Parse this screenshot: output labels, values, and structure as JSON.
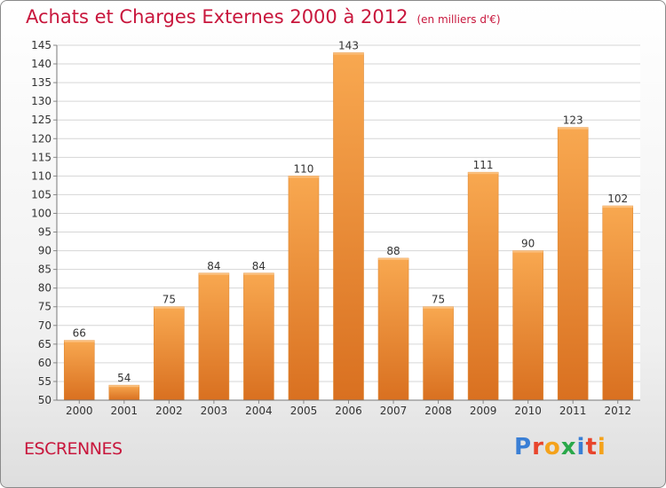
{
  "header": {
    "title": "Achats et Charges Externes 2000 à 2012",
    "unit": "(en milliers d'€)"
  },
  "commune": "ESCRENNES",
  "logo": {
    "text": "Proxiti",
    "letter_colors": [
      "#3a7fd5",
      "#e8452c",
      "#f4a21b",
      "#2aa84a",
      "#3a7fd5",
      "#e8452c",
      "#f4a21b"
    ]
  },
  "chart_data": {
    "type": "bar",
    "title": "Achats et Charges Externes 2000 à 2012",
    "subtitle": "(en milliers d'€)",
    "categories": [
      "2000",
      "2001",
      "2002",
      "2003",
      "2004",
      "2005",
      "2006",
      "2007",
      "2008",
      "2009",
      "2010",
      "2011",
      "2012"
    ],
    "values": [
      66,
      54,
      75,
      84,
      84,
      110,
      143,
      88,
      75,
      111,
      90,
      123,
      102
    ],
    "ylim": [
      50,
      145
    ],
    "ytick_step": 5,
    "grid": true,
    "bar_color": "#f0953a",
    "bar_color_light": "#f8a850",
    "bar_color_dark": "#d97020"
  }
}
